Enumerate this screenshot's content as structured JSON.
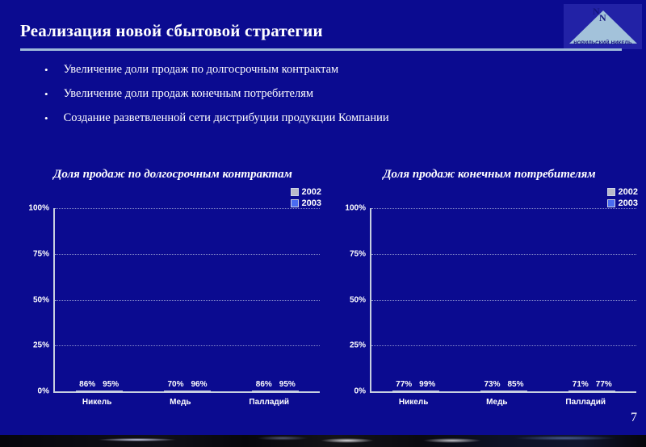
{
  "slide": {
    "title": "Реализация новой сбытовой стратегии",
    "page_number": "7",
    "bullet_char": "•",
    "bullets": [
      "Увеличение доли продаж по долгосрочным контрактам",
      "Увеличение доли продаж конечным потребителям",
      "Создание разветвленной сети дистрибуции продукции Компании"
    ],
    "logo": {
      "company": "НОРИЛЬСКИЙ НИКЕЛЬ",
      "monogram": "N",
      "triangle_color": "#a3c2da",
      "box_color": "#2222a6"
    },
    "colors": {
      "background": "#0b0b90",
      "rule": "#9db9d9",
      "series_2002": "#c2c2c2",
      "series_2003": "#3d68fa"
    }
  },
  "chart_data": [
    {
      "type": "bar",
      "title": "Доля продаж по долгосрочным контрактам",
      "categories": [
        "Никель",
        "Медь",
        "Палладий"
      ],
      "series": [
        {
          "name": "2002",
          "color": "#c2c2c2",
          "legend_color": "#b9bac9",
          "values": [
            86,
            70,
            86
          ]
        },
        {
          "name": "2003",
          "color": "#3d68fa",
          "legend_color": "#4a6cf0",
          "values": [
            95,
            96,
            95
          ]
        }
      ],
      "value_suffix": "%",
      "yticks": [
        "100%",
        "75%",
        "50%",
        "25%",
        "0%"
      ],
      "ylim": [
        0,
        100
      ],
      "grid": true,
      "legend_position": "top-right"
    },
    {
      "type": "bar",
      "title": "Доля продаж конечным потребителям",
      "categories": [
        "Никель",
        "Медь",
        "Палладий"
      ],
      "series": [
        {
          "name": "2002",
          "color": "#c2c2c2",
          "legend_color": "#b9bac9",
          "values": [
            77,
            73,
            71
          ]
        },
        {
          "name": "2003",
          "color": "#3d68fa",
          "legend_color": "#4a6cf0",
          "values": [
            99,
            85,
            77
          ]
        }
      ],
      "value_suffix": "%",
      "yticks": [
        "100%",
        "75%",
        "50%",
        "25%",
        "0%"
      ],
      "ylim": [
        0,
        100
      ],
      "grid": true,
      "legend_position": "top-right"
    }
  ]
}
